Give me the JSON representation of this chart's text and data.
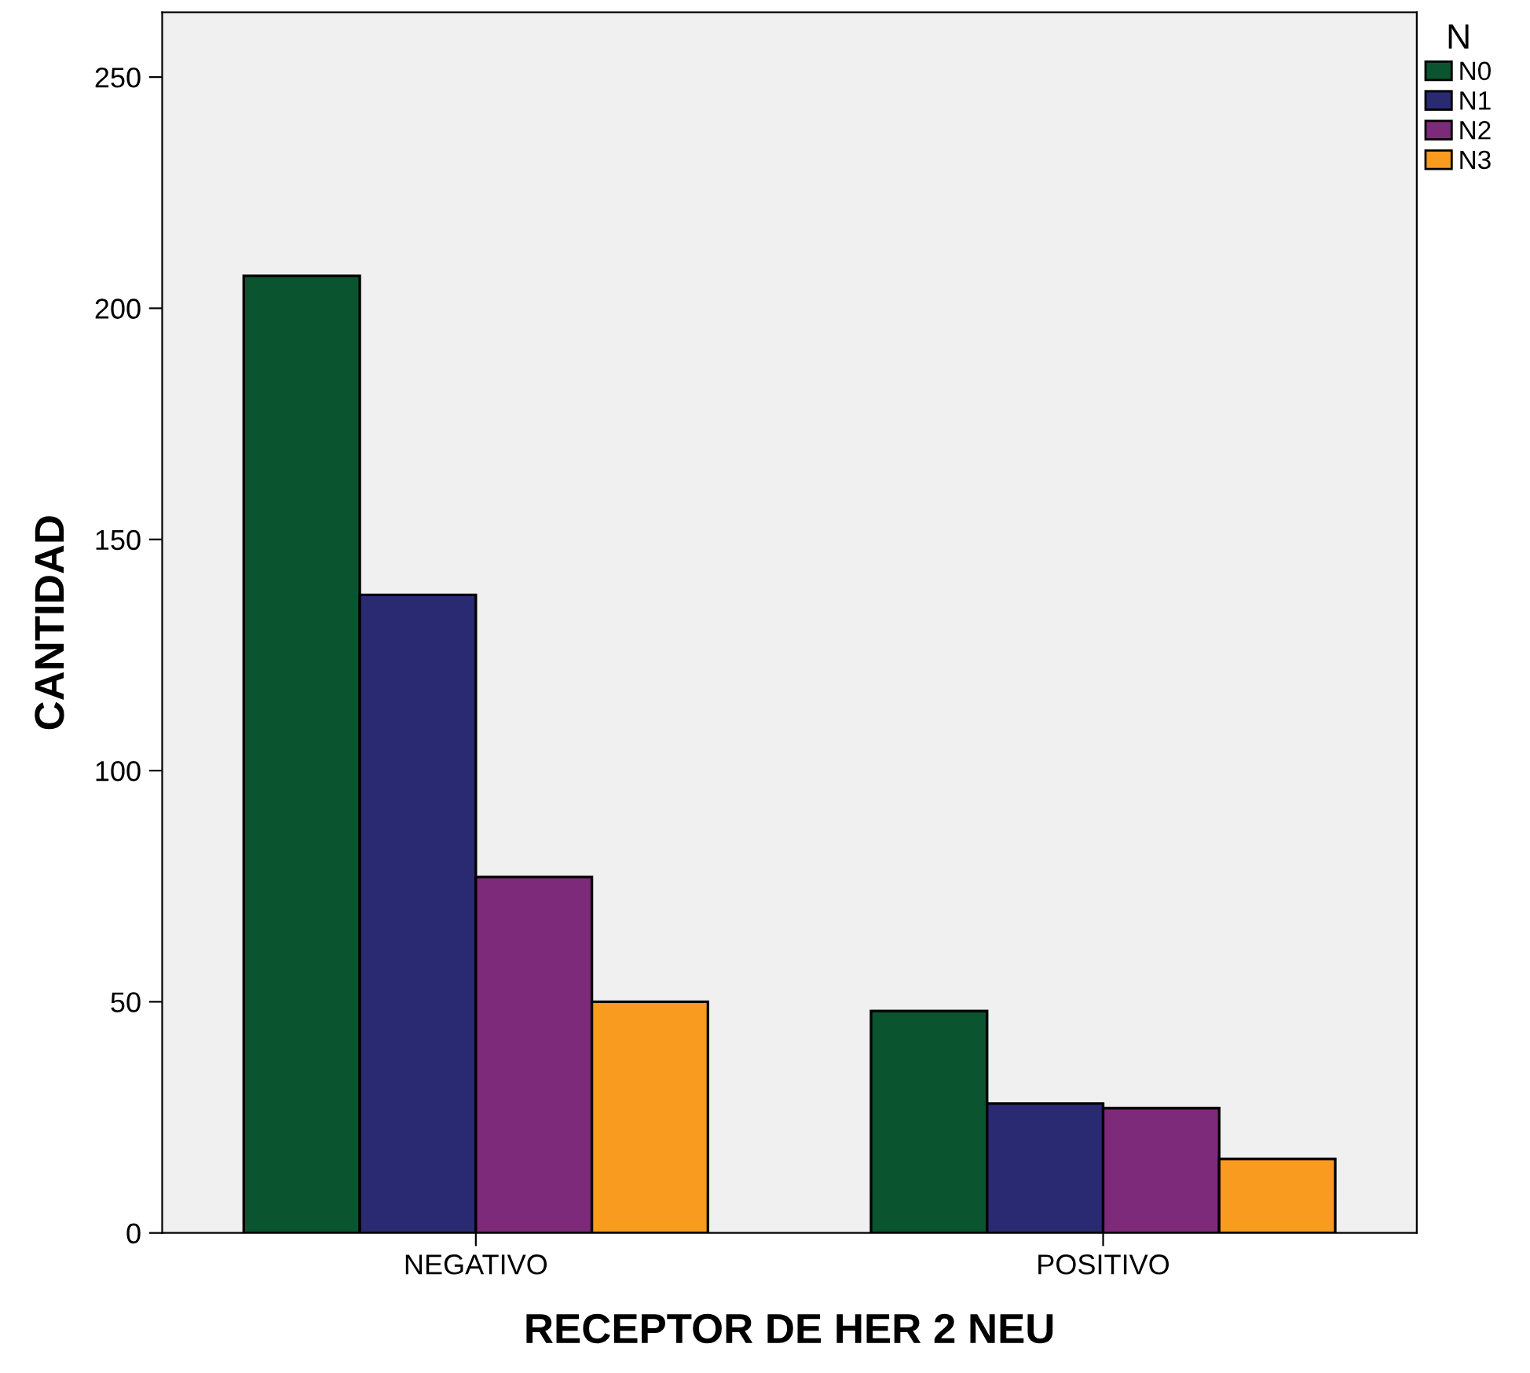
{
  "chart_data": {
    "type": "bar",
    "xlabel": "RECEPTOR DE HER 2 NEU",
    "ylabel": "CANTIDAD",
    "legend_title": "N",
    "categories": [
      "NEGATIVO",
      "POSITIVO"
    ],
    "series": [
      {
        "name": "N0",
        "color": "#0b5430",
        "values": [
          207,
          48
        ]
      },
      {
        "name": "N1",
        "color": "#2a2a72",
        "values": [
          138,
          28
        ]
      },
      {
        "name": "N2",
        "color": "#7d2a7a",
        "values": [
          77,
          27
        ]
      },
      {
        "name": "N3",
        "color": "#f99b1f",
        "values": [
          50,
          16
        ]
      }
    ],
    "ylim": [
      0,
      264
    ],
    "yticks": [
      0,
      50,
      100,
      150,
      200,
      250
    ],
    "grid": false,
    "legend": "top right"
  }
}
